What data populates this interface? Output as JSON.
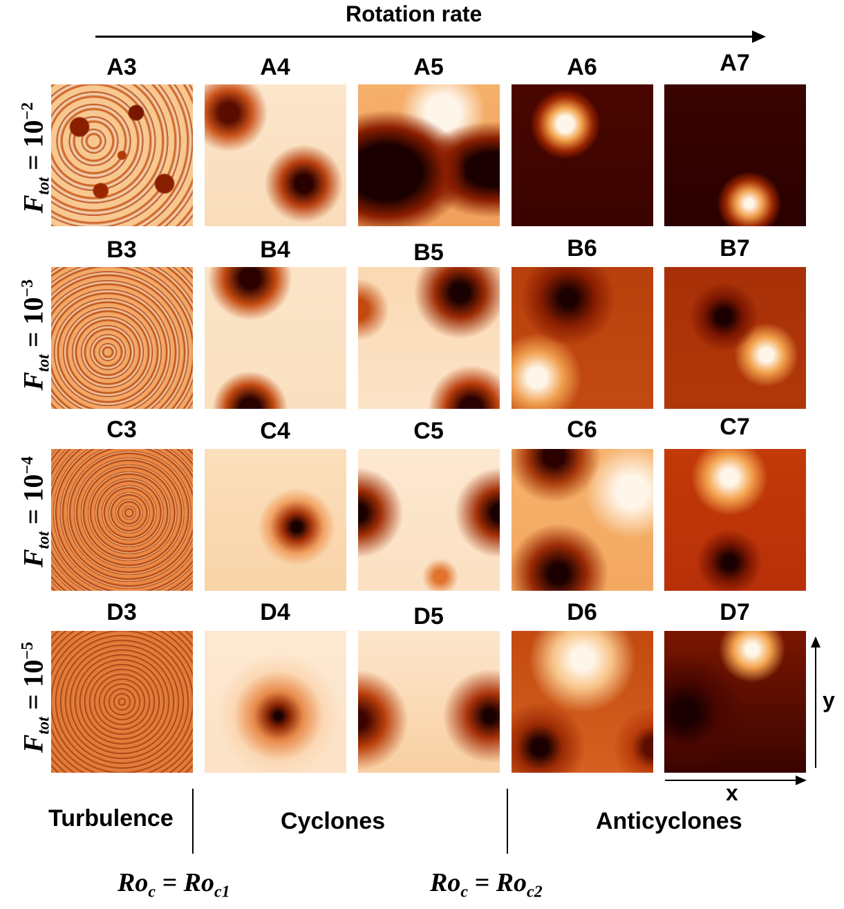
{
  "header": {
    "title": "Rotation rate"
  },
  "rows": [
    {
      "label_var": "F",
      "label_sub": "tot",
      "label_mid": " = 10",
      "label_exp": "−2",
      "labels": [
        "A3",
        "A4",
        "A5",
        "A6",
        "A7"
      ]
    },
    {
      "label_var": "F",
      "label_sub": "tot",
      "label_mid": " = 10",
      "label_exp": "−3",
      "labels": [
        "B3",
        "B4",
        "B5",
        "B6",
        "B7"
      ]
    },
    {
      "label_var": "F",
      "label_sub": "tot",
      "label_mid": " = 10",
      "label_exp": "−4",
      "labels": [
        "C3",
        "C4",
        "C5",
        "C6",
        "C7"
      ]
    },
    {
      "label_var": "F",
      "label_sub": "tot",
      "label_mid": " = 10",
      "label_exp": "−5",
      "labels": [
        "D3",
        "D4",
        "D5",
        "D6",
        "D7"
      ]
    }
  ],
  "regimes": {
    "turbulence": "Turbulence",
    "cyclones": "Cyclones",
    "anticyclones": "Anticyclones"
  },
  "thresholds": {
    "first": {
      "main": "Ro",
      "sub1": "c",
      "eq": " = Ro",
      "sub2": "c1"
    },
    "second": {
      "main": "Ro",
      "sub1": "c",
      "eq": " = Ro",
      "sub2": "c2"
    }
  },
  "axes": {
    "x": "x",
    "y": "y"
  },
  "colors": {
    "dark": "#2a0000",
    "mid": "#c24a0a",
    "light": "#fff6ea"
  }
}
